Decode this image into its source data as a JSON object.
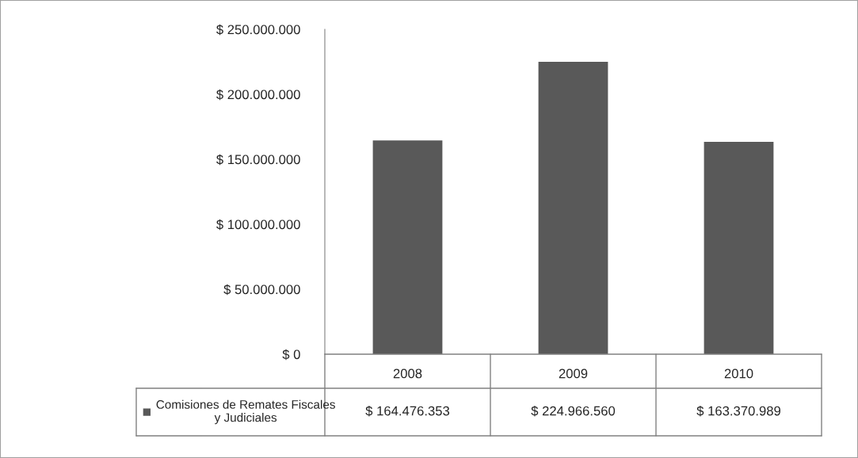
{
  "chart_data": {
    "type": "bar",
    "categories": [
      "2008",
      "2009",
      "2010"
    ],
    "series": [
      {
        "name": "Comisiones de Remates Fiscales\ny Judiciales",
        "color": "#595959",
        "values": [
          164476353,
          224966560,
          163370989
        ],
        "value_labels": [
          "$ 164.476.353",
          "$ 224.966.560",
          "$ 163.370.989"
        ]
      }
    ],
    "ylim": [
      0,
      250000000
    ],
    "yticks": [
      {
        "value": 0,
        "label": "$ 0"
      },
      {
        "value": 50000000,
        "label": "$ 50.000.000"
      },
      {
        "value": 100000000,
        "label": "$ 100.000.000"
      },
      {
        "value": 150000000,
        "label": "$ 150.000.000"
      },
      {
        "value": 200000000,
        "label": "$ 200.000.000"
      },
      {
        "value": 250000000,
        "label": "$ 250.000.000"
      }
    ],
    "grid": false,
    "legend": "bottom left"
  }
}
